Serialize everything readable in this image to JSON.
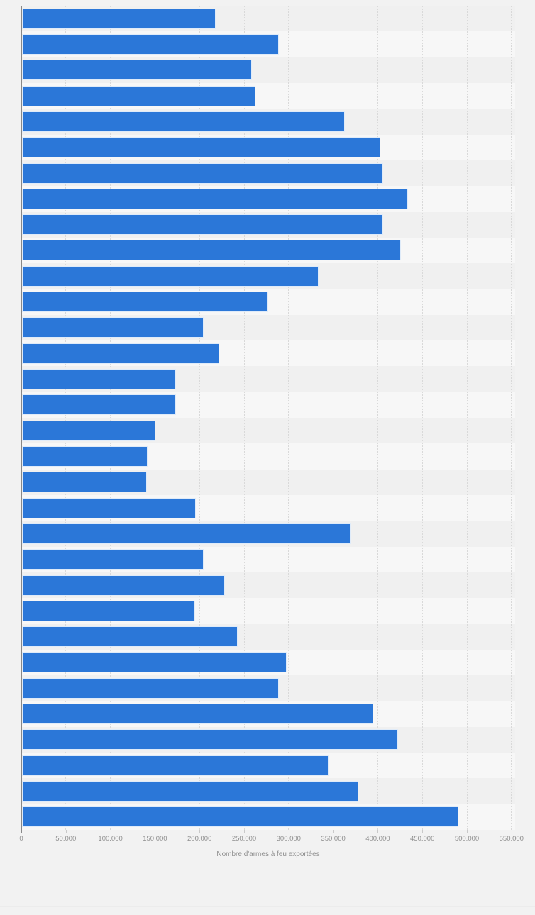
{
  "colors": {
    "bar": "#2b77d8",
    "page_bg": "#f2f2f2",
    "band_odd": "#f0f0f0",
    "band_even": "#f7f7f7",
    "gridline": "#d9d9d9",
    "axis_line": "#888888",
    "tick_text": "#8e8e8e"
  },
  "x_axis": {
    "title": "Nombre d'armes à feu exportées",
    "tick_labels": [
      "0",
      "50.000",
      "100.000",
      "150.000",
      "200.000",
      "250.000",
      "300.000",
      "350.000",
      "400.000",
      "450.000",
      "500.000",
      "550.000"
    ]
  },
  "chart_data": {
    "type": "bar",
    "orientation": "horizontal",
    "title": "",
    "xlabel": "Nombre d'armes à feu exportées",
    "ylabel": "",
    "legend": "none",
    "grid": "vertical dashed gridlines, zebra row bands",
    "xlim": [
      0,
      550000
    ],
    "x_ticks": [
      0,
      50000,
      100000,
      150000,
      200000,
      250000,
      300000,
      350000,
      400000,
      450000,
      500000,
      550000
    ],
    "x_tick_labels": [
      "0",
      "50.000",
      "100.000",
      "150.000",
      "200.000",
      "250.000",
      "300.000",
      "350.000",
      "400.000",
      "450.000",
      "500.000",
      "550.000"
    ],
    "categories": [
      "",
      "",
      "",
      "",
      "",
      "",
      "",
      "",
      "",
      "",
      "",
      "",
      "",
      "",
      "",
      "",
      "",
      "",
      "",
      "",
      "",
      "",
      "",
      "",
      "",
      "",
      "",
      "",
      "",
      "",
      "",
      ""
    ],
    "values": [
      217000,
      288000,
      258000,
      262000,
      362000,
      402000,
      405000,
      433000,
      405000,
      425000,
      333000,
      276000,
      204000,
      221000,
      173000,
      173000,
      150000,
      141000,
      140000,
      195000,
      369000,
      204000,
      228000,
      194000,
      242000,
      297000,
      288000,
      394000,
      422000,
      344000,
      377000,
      490000
    ]
  }
}
